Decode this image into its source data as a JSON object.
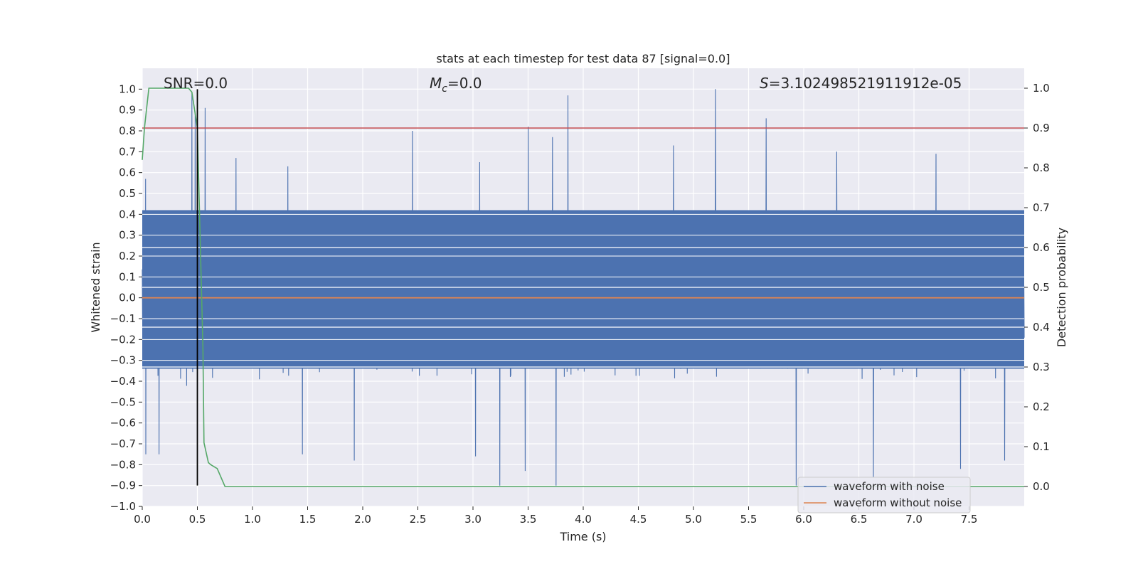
{
  "chart_data": {
    "type": "line",
    "title": "stats at each timestep for test data 87 [signal=0.0]",
    "xlabel": "Time (s)",
    "ylabel_left": "Whitened strain",
    "ylabel_right": "Detection probability",
    "xlim": [
      0.0,
      8.0
    ],
    "ylim_left": [
      -1.0,
      1.1
    ],
    "ylim_right": [
      -0.05,
      1.05
    ],
    "x_ticks": [
      0.0,
      0.5,
      1.0,
      1.5,
      2.0,
      2.5,
      3.0,
      3.5,
      4.0,
      4.5,
      5.0,
      5.5,
      6.0,
      6.5,
      7.0,
      7.5
    ],
    "x_tick_labels": [
      "0.0",
      "0.5",
      "1.0",
      "1.5",
      "2.0",
      "2.5",
      "3.0",
      "3.5",
      "4.0",
      "4.5",
      "5.0",
      "5.5",
      "6.0",
      "6.5",
      "7.0",
      "7.5"
    ],
    "y_left_ticks": [
      1.0,
      0.9,
      0.8,
      0.7,
      0.6,
      0.5,
      0.4,
      0.3,
      0.2,
      0.1,
      0.0,
      -0.1,
      -0.2,
      -0.3,
      -0.4,
      -0.5,
      -0.6,
      -0.7,
      -0.8,
      -0.9,
      -1.0
    ],
    "y_left_tick_labels": [
      "1.0",
      "0.9",
      "0.8",
      "0.7",
      "0.6",
      "0.5",
      "0.4",
      "0.3",
      "0.2",
      "0.1",
      "0.0",
      "−0.1",
      "−0.2",
      "−0.3",
      "−0.4",
      "−0.5",
      "−0.6",
      "−0.7",
      "−0.8",
      "−0.9",
      "−1.0"
    ],
    "y_right_ticks": [
      1.0,
      0.9,
      0.8,
      0.7,
      0.6,
      0.5,
      0.4,
      0.3,
      0.2,
      0.1,
      0.0
    ],
    "y_right_tick_labels": [
      "1.0",
      "0.9",
      "0.8",
      "0.7",
      "0.6",
      "0.5",
      "0.4",
      "0.3",
      "0.2",
      "0.1",
      "0.0"
    ],
    "annotations": {
      "snr": "SNR=0.0",
      "mc_symbol": "M",
      "mc_sub": "c",
      "mc_value": "=0.0",
      "s_symbol": "S",
      "s_value": "=3.102498521911912e-05"
    },
    "noise_series": {
      "name": "waveform with noise",
      "color": "#4c72b0",
      "envelope_upper": 0.42,
      "envelope_lower": -0.34,
      "n_samples": 3200,
      "peak_x": [
        0.03,
        0.45,
        0.48,
        0.57,
        0.85,
        1.32,
        2.45,
        3.06,
        3.5,
        3.72,
        3.86,
        4.82,
        5.2,
        5.66,
        6.3,
        7.2
      ],
      "peak_y": [
        0.57,
        0.98,
        0.89,
        0.91,
        0.67,
        0.63,
        0.8,
        0.65,
        0.82,
        0.77,
        0.97,
        0.73,
        1.0,
        0.86,
        0.7,
        0.69
      ],
      "trough_x": [
        0.03,
        0.15,
        1.45,
        1.92,
        3.02,
        3.24,
        3.47,
        3.75,
        5.93,
        6.63,
        7.42,
        7.82
      ],
      "trough_y": [
        -0.75,
        -0.75,
        -0.75,
        -0.78,
        -0.76,
        -0.9,
        -0.83,
        -0.9,
        -0.9,
        -0.86,
        -0.82,
        -0.78
      ]
    },
    "clean_series": {
      "name": "waveform without noise",
      "color": "#dd8452",
      "y": 0.0
    },
    "probability_series": {
      "name": "detection probability",
      "color": "#55a868",
      "x": [
        0.0,
        0.02,
        0.06,
        0.1,
        0.2,
        0.3,
        0.42,
        0.45,
        0.5,
        0.55,
        0.56,
        0.6,
        0.62,
        0.68,
        0.75,
        1.0,
        2.0,
        4.0,
        6.0,
        8.0
      ],
      "y": [
        0.82,
        0.9,
        1.0,
        1.0,
        1.0,
        1.0,
        1.0,
        0.99,
        0.9,
        0.35,
        0.11,
        0.06,
        0.055,
        0.045,
        0.0,
        0.0,
        0.0,
        0.0,
        0.0,
        0.0
      ]
    },
    "threshold": {
      "y_right": 0.9,
      "color": "#c44e52"
    },
    "vertical_marker": {
      "x": 0.5,
      "y_from": -0.9,
      "y_to": 1.0,
      "color": "#000000"
    },
    "legend": {
      "position": "lower-right",
      "entries": [
        {
          "label": "waveform with noise",
          "color": "#4c72b0"
        },
        {
          "label": "waveform without noise",
          "color": "#dd8452"
        }
      ]
    },
    "grid": true,
    "style": {
      "plot_bg": "#eaeaf2",
      "grid_color": "#ffffff"
    }
  }
}
